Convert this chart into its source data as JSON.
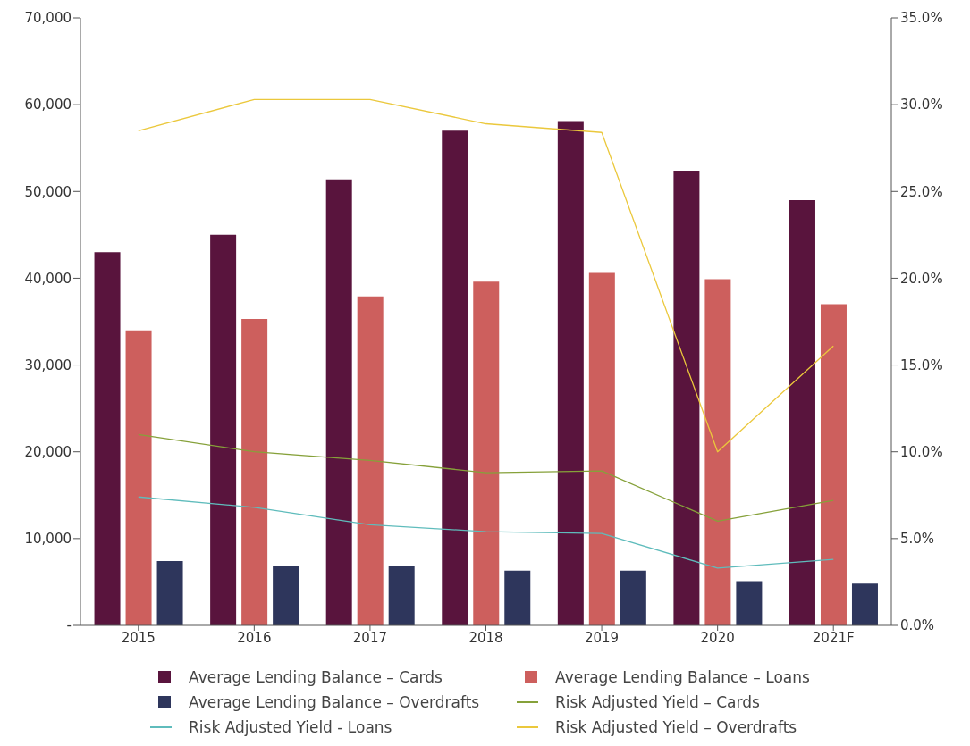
{
  "chart_data": {
    "type": "bar",
    "categories": [
      "2015",
      "2016",
      "2017",
      "2018",
      "2019",
      "2020",
      "2021F"
    ],
    "series": [
      {
        "name": "Average Lending Balance – Cards",
        "color": "#59143d",
        "values": [
          43000,
          45000,
          51400,
          57000,
          58100,
          52400,
          49000
        ]
      },
      {
        "name": "Average Lending Balance – Loans",
        "color": "#cd5f5d",
        "values": [
          34000,
          35300,
          37900,
          39600,
          40600,
          39900,
          37000
        ]
      },
      {
        "name": "Average Lending Balance – Overdrafts",
        "color": "#2e365c",
        "values": [
          7400,
          6900,
          6900,
          6300,
          6300,
          5100,
          4800
        ]
      },
      {
        "name": "Risk Adjusted Yield – Cards",
        "type": "line",
        "axis": "y2",
        "color": "#86a13a",
        "values": [
          11.0,
          10.0,
          9.5,
          8.8,
          8.9,
          6.0,
          7.2
        ]
      },
      {
        "name": "Risk Adjusted Yield - Loans",
        "type": "line",
        "axis": "y2",
        "color": "#5fbcbc",
        "values": [
          7.4,
          6.8,
          5.8,
          5.4,
          5.3,
          3.3,
          3.8
        ]
      },
      {
        "name": "Risk Adjusted Yield – Overdrafts",
        "type": "line",
        "axis": "y2",
        "color": "#ebc83c",
        "values": [
          28.5,
          30.3,
          30.3,
          28.9,
          28.4,
          10.0,
          16.1
        ]
      }
    ],
    "ylim": [
      0,
      70000
    ],
    "yticks": [
      {
        "value": 0,
        "label": "-"
      },
      {
        "value": 10000,
        "label": "10,000"
      },
      {
        "value": 20000,
        "label": "20,000"
      },
      {
        "value": 30000,
        "label": "30,000"
      },
      {
        "value": 40000,
        "label": "40,000"
      },
      {
        "value": 50000,
        "label": "50,000"
      },
      {
        "value": 60000,
        "label": "60,000"
      },
      {
        "value": 70000,
        "label": "70,000"
      }
    ],
    "y2lim": [
      0,
      35
    ],
    "y2ticks": [
      {
        "value": 0,
        "label": "0.0%"
      },
      {
        "value": 5,
        "label": "5.0%"
      },
      {
        "value": 10,
        "label": "10.0%"
      },
      {
        "value": 15,
        "label": "15.0%"
      },
      {
        "value": 20,
        "label": "20.0%"
      },
      {
        "value": 25,
        "label": "25.0%"
      },
      {
        "value": 30,
        "label": "30.0%"
      },
      {
        "value": 35,
        "label": "35.0%"
      }
    ],
    "legend": "bottom",
    "grid": false,
    "marker": "none",
    "line_style": "solid"
  }
}
